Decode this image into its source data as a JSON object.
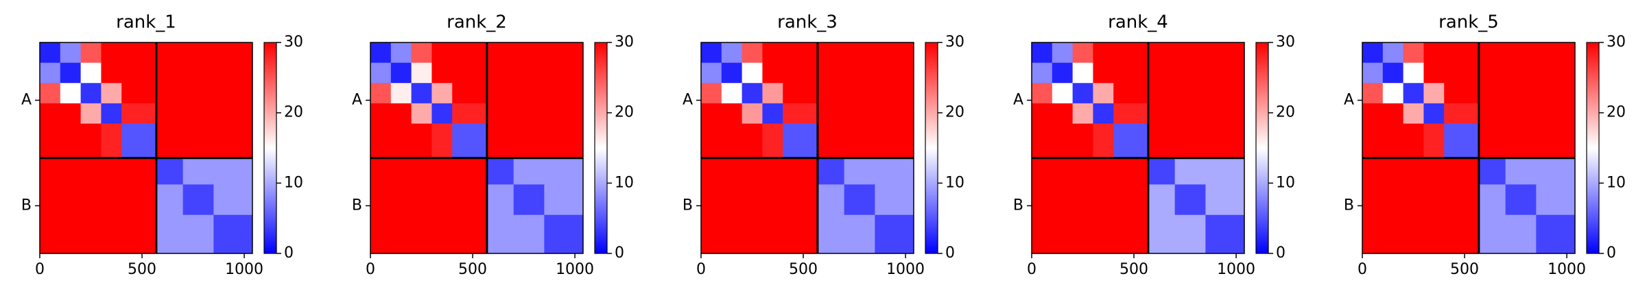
{
  "chart_data": [
    {
      "type": "heatmap",
      "title": "rank_1",
      "bins": [
        0,
        100,
        200,
        300,
        400,
        570,
        700,
        850,
        1040
      ],
      "z": [
        [
          2,
          8,
          25,
          30,
          30,
          30,
          30,
          30
        ],
        [
          8,
          2,
          15,
          30,
          30,
          30,
          30,
          30
        ],
        [
          25,
          15,
          3,
          20,
          30,
          30,
          30,
          30
        ],
        [
          30,
          30,
          20,
          3,
          28,
          30,
          30,
          30
        ],
        [
          30,
          30,
          30,
          28,
          5,
          30,
          30,
          30
        ],
        [
          30,
          30,
          30,
          30,
          30,
          4,
          9,
          9
        ],
        [
          30,
          30,
          30,
          30,
          30,
          9,
          4,
          9
        ],
        [
          30,
          30,
          30,
          30,
          30,
          9,
          9,
          4
        ]
      ],
      "xlim": [
        0,
        1040
      ],
      "ylim": [
        1040,
        0
      ],
      "xticks": [
        0,
        500,
        1000
      ],
      "yticks": [
        {
          "value": 285,
          "label": "A"
        },
        {
          "value": 805,
          "label": "B"
        }
      ],
      "boundaries": [
        570
      ],
      "clim": [
        0,
        30
      ],
      "cticks": [
        0,
        10,
        20,
        30
      ],
      "colors": [
        "#0000ff",
        "#ffffff",
        "#ff0000"
      ]
    },
    {
      "type": "heatmap",
      "title": "rank_2",
      "bins": [
        0,
        100,
        200,
        300,
        400,
        570,
        700,
        850,
        1040
      ],
      "z": [
        [
          2,
          8,
          25,
          30,
          30,
          30,
          30,
          30
        ],
        [
          8,
          2,
          16,
          30,
          30,
          30,
          30,
          30
        ],
        [
          25,
          16,
          3,
          20,
          30,
          30,
          30,
          30
        ],
        [
          30,
          30,
          20,
          3,
          28,
          30,
          30,
          30
        ],
        [
          30,
          30,
          30,
          28,
          5,
          30,
          30,
          30
        ],
        [
          30,
          30,
          30,
          30,
          30,
          4,
          9,
          9
        ],
        [
          30,
          30,
          30,
          30,
          30,
          9,
          4,
          9
        ],
        [
          30,
          30,
          30,
          30,
          30,
          9,
          9,
          4
        ]
      ],
      "xlim": [
        0,
        1040
      ],
      "ylim": [
        1040,
        0
      ],
      "xticks": [
        0,
        500,
        1000
      ],
      "yticks": [
        {
          "value": 285,
          "label": "A"
        },
        {
          "value": 805,
          "label": "B"
        }
      ],
      "boundaries": [
        570
      ],
      "clim": [
        0,
        30
      ],
      "cticks": [
        0,
        10,
        20,
        30
      ],
      "colors": [
        "#0000ff",
        "#ffffff",
        "#ff0000"
      ]
    },
    {
      "type": "heatmap",
      "title": "rank_3",
      "bins": [
        0,
        100,
        200,
        300,
        400,
        570,
        700,
        850,
        1040
      ],
      "z": [
        [
          2,
          8,
          25,
          30,
          30,
          30,
          30,
          30
        ],
        [
          8,
          2,
          15,
          30,
          30,
          30,
          30,
          30
        ],
        [
          25,
          15,
          3,
          21,
          30,
          30,
          30,
          30
        ],
        [
          30,
          30,
          21,
          3,
          28,
          30,
          30,
          30
        ],
        [
          30,
          30,
          30,
          28,
          5,
          30,
          30,
          30
        ],
        [
          30,
          30,
          30,
          30,
          30,
          4,
          9,
          9
        ],
        [
          30,
          30,
          30,
          30,
          30,
          9,
          4,
          9
        ],
        [
          30,
          30,
          30,
          30,
          30,
          9,
          9,
          4
        ]
      ],
      "xlim": [
        0,
        1040
      ],
      "ylim": [
        1040,
        0
      ],
      "xticks": [
        0,
        500,
        1000
      ],
      "yticks": [
        {
          "value": 285,
          "label": "A"
        },
        {
          "value": 805,
          "label": "B"
        }
      ],
      "boundaries": [
        570
      ],
      "clim": [
        0,
        30
      ],
      "cticks": [
        0,
        10,
        20,
        30
      ],
      "colors": [
        "#0000ff",
        "#ffffff",
        "#ff0000"
      ]
    },
    {
      "type": "heatmap",
      "title": "rank_4",
      "bins": [
        0,
        100,
        200,
        300,
        400,
        570,
        700,
        850,
        1040
      ],
      "z": [
        [
          2,
          8,
          25,
          30,
          30,
          30,
          30,
          30
        ],
        [
          8,
          2,
          15,
          30,
          30,
          30,
          30,
          30
        ],
        [
          25,
          15,
          3,
          20,
          30,
          30,
          30,
          30
        ],
        [
          30,
          30,
          20,
          3,
          28,
          30,
          30,
          30
        ],
        [
          30,
          30,
          30,
          28,
          5,
          30,
          30,
          30
        ],
        [
          30,
          30,
          30,
          30,
          30,
          4,
          10,
          10
        ],
        [
          30,
          30,
          30,
          30,
          30,
          10,
          4,
          10
        ],
        [
          30,
          30,
          30,
          30,
          30,
          10,
          10,
          4
        ]
      ],
      "xlim": [
        0,
        1040
      ],
      "ylim": [
        1040,
        0
      ],
      "xticks": [
        0,
        500,
        1000
      ],
      "yticks": [
        {
          "value": 285,
          "label": "A"
        },
        {
          "value": 805,
          "label": "B"
        }
      ],
      "boundaries": [
        570
      ],
      "clim": [
        0,
        30
      ],
      "cticks": [
        0,
        10,
        20,
        30
      ],
      "colors": [
        "#0000ff",
        "#ffffff",
        "#ff0000"
      ]
    },
    {
      "type": "heatmap",
      "title": "rank_5",
      "bins": [
        0,
        100,
        200,
        300,
        400,
        570,
        700,
        850,
        1040
      ],
      "z": [
        [
          2,
          8,
          25,
          30,
          30,
          30,
          30,
          30
        ],
        [
          8,
          2,
          15,
          30,
          30,
          30,
          30,
          30
        ],
        [
          25,
          15,
          3,
          20,
          30,
          30,
          30,
          30
        ],
        [
          30,
          30,
          20,
          3,
          28,
          30,
          30,
          30
        ],
        [
          30,
          30,
          30,
          28,
          5,
          30,
          30,
          30
        ],
        [
          30,
          30,
          30,
          30,
          30,
          4,
          9,
          9
        ],
        [
          30,
          30,
          30,
          30,
          30,
          9,
          4,
          9
        ],
        [
          30,
          30,
          30,
          30,
          30,
          9,
          9,
          4
        ]
      ],
      "xlim": [
        0,
        1040
      ],
      "ylim": [
        1040,
        0
      ],
      "xticks": [
        0,
        500,
        1000
      ],
      "yticks": [
        {
          "value": 285,
          "label": "A"
        },
        {
          "value": 805,
          "label": "B"
        }
      ],
      "boundaries": [
        570
      ],
      "clim": [
        0,
        30
      ],
      "cticks": [
        0,
        10,
        20,
        30
      ],
      "colors": [
        "#0000ff",
        "#ffffff",
        "#ff0000"
      ]
    }
  ]
}
